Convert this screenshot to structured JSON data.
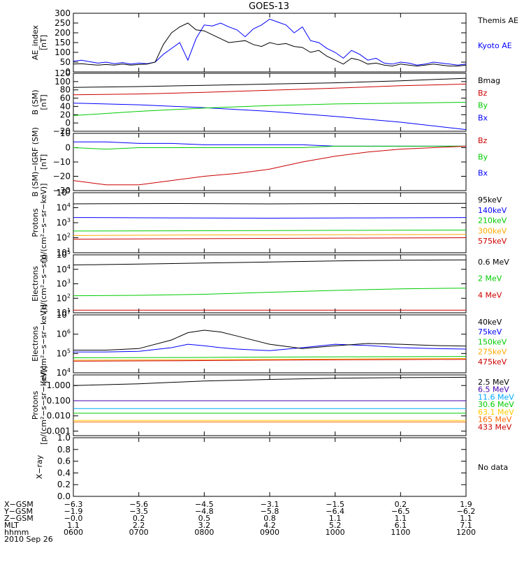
{
  "title": "GOES-13",
  "chart_data": [
    {
      "type": "line",
      "ylabel": "AE_index\n[nT]",
      "ylim": [
        0,
        300
      ],
      "yticks": [
        "0",
        "50",
        "100",
        "150",
        "200",
        "250",
        "300"
      ],
      "ytick_values": [
        0,
        50,
        100,
        150,
        200,
        250,
        300
      ],
      "series": [
        {
          "name": "Kyoto AE",
          "color": "#0000ff",
          "x": [
            0,
            0.5,
            1,
            1.5,
            2,
            2.5,
            3,
            3.5,
            4,
            4.5,
            5,
            5.5,
            6,
            6.5,
            7,
            7.5,
            8,
            8.5,
            9,
            9.5,
            10,
            10.5,
            11,
            11.5,
            12,
            12.5,
            13,
            13.5,
            14,
            14.5,
            15,
            15.5,
            16,
            16.5,
            17,
            17.5,
            18,
            18.5,
            19,
            19.5,
            20,
            20.5,
            21,
            21.5,
            22,
            22.5,
            23,
            23.5,
            24
          ],
          "y": [
            55,
            60,
            52,
            45,
            50,
            42,
            48,
            40,
            45,
            42,
            50,
            90,
            120,
            150,
            60,
            170,
            240,
            235,
            250,
            230,
            215,
            180,
            220,
            240,
            270,
            255,
            240,
            200,
            230,
            160,
            150,
            120,
            100,
            70,
            110,
            90,
            60,
            70,
            45,
            40,
            50,
            45,
            35,
            40,
            50,
            45,
            40,
            35,
            40
          ]
        },
        {
          "name": "Themis AE",
          "color": "#000000",
          "x": [
            0,
            0.5,
            1,
            1.5,
            2,
            2.5,
            3,
            3.5,
            4,
            4.5,
            5,
            5.5,
            6,
            6.5,
            7,
            7.5,
            8,
            8.5,
            9,
            9.5,
            10,
            10.5,
            11,
            11.5,
            12,
            12.5,
            13,
            13.5,
            14,
            14.5,
            15,
            15.5,
            16,
            16.5,
            17,
            17.5,
            18,
            18.5,
            19,
            19.5,
            20,
            20.5,
            21,
            21.5,
            22,
            22.5,
            23,
            23.5,
            24
          ],
          "y": [
            40,
            42,
            38,
            35,
            38,
            35,
            40,
            35,
            38,
            40,
            50,
            140,
            200,
            230,
            250,
            215,
            210,
            190,
            170,
            150,
            155,
            160,
            140,
            130,
            150,
            140,
            145,
            130,
            125,
            100,
            110,
            80,
            60,
            40,
            70,
            60,
            40,
            45,
            35,
            30,
            40,
            35,
            30,
            35,
            40,
            35,
            30,
            30,
            35
          ]
        }
      ]
    },
    {
      "type": "line",
      "ylabel": "B (SM)\n[nT]",
      "ylim": [
        -20,
        120
      ],
      "yticks": [
        "−20",
        "0",
        "20",
        "40",
        "60",
        "80",
        "100",
        "120"
      ],
      "ytick_values": [
        -20,
        0,
        20,
        40,
        60,
        80,
        100,
        120
      ],
      "series": [
        {
          "name": "Bx",
          "color": "#0000ff",
          "x": [
            0,
            4,
            8,
            12,
            16,
            20,
            24
          ],
          "y": [
            48,
            44,
            37,
            28,
            16,
            2,
            -16
          ]
        },
        {
          "name": "By",
          "color": "#00cc00",
          "x": [
            0,
            4,
            8,
            12,
            16,
            20,
            24
          ],
          "y": [
            18,
            28,
            36,
            42,
            46,
            48,
            50
          ]
        },
        {
          "name": "Bz",
          "color": "#cc0000",
          "x": [
            0,
            4,
            8,
            12,
            16,
            20,
            24
          ],
          "y": [
            68,
            70,
            74,
            79,
            84,
            90,
            94
          ]
        },
        {
          "name": "Bmag",
          "color": "#000000",
          "x": [
            0,
            4,
            8,
            12,
            16,
            20,
            24
          ],
          "y": [
            86,
            88,
            91,
            94,
            97,
            102,
            108
          ]
        }
      ]
    },
    {
      "type": "line",
      "ylabel": "B (SM)−IGRF (SM)\n[nT]",
      "ylim": [
        -30,
        10
      ],
      "yticks": [
        "−30",
        "−20",
        "−10",
        "0",
        "10"
      ],
      "ytick_values": [
        -30,
        -20,
        -10,
        0,
        10
      ],
      "series": [
        {
          "name": "Bx",
          "color": "#0000ff",
          "x": [
            0,
            2,
            4,
            6,
            8,
            10,
            12,
            14,
            16,
            18,
            20,
            22,
            24
          ],
          "y": [
            4,
            4,
            3,
            3,
            2,
            2,
            2,
            2,
            1,
            1,
            1,
            1,
            1
          ]
        },
        {
          "name": "By",
          "color": "#00cc00",
          "x": [
            0,
            2,
            4,
            6,
            8,
            10,
            12,
            14,
            16,
            18,
            20,
            22,
            24
          ],
          "y": [
            0,
            -1,
            0,
            0,
            0,
            0,
            0,
            0,
            1,
            1,
            1,
            1,
            1
          ]
        },
        {
          "name": "Bz",
          "color": "#cc0000",
          "x": [
            0,
            2,
            4,
            6,
            8,
            10,
            12,
            14,
            16,
            18,
            20,
            22,
            24
          ],
          "y": [
            -23,
            -26,
            -26,
            -23,
            -20,
            -18,
            -15,
            -10,
            -6,
            -3,
            -1,
            0,
            1
          ]
        }
      ]
    },
    {
      "type": "line",
      "scale": "log",
      "ylabel": "Protons\n[p/(cm²−s−sr−keV)]",
      "ylim": [
        10,
        100000
      ],
      "ytick_exps": [
        1,
        2,
        3,
        4,
        5
      ],
      "series": [
        {
          "name": "575keV",
          "color": "#cc0000",
          "x": [
            0,
            6,
            12,
            18,
            24
          ],
          "y": [
            80,
            85,
            90,
            95,
            100
          ]
        },
        {
          "name": "300keV",
          "color": "#ffaa00",
          "x": [
            0,
            6,
            12,
            18,
            24
          ],
          "y": [
            140,
            150,
            155,
            160,
            165
          ]
        },
        {
          "name": "210keV",
          "color": "#00cc00",
          "x": [
            0,
            6,
            12,
            18,
            24
          ],
          "y": [
            280,
            290,
            300,
            310,
            320
          ]
        },
        {
          "name": "140keV",
          "color": "#0000ff",
          "x": [
            0,
            6,
            12,
            18,
            24
          ],
          "y": [
            2200,
            2100,
            2000,
            2100,
            2200
          ]
        },
        {
          "name": "95keV",
          "color": "#000000",
          "x": [
            0,
            6,
            12,
            18,
            24
          ],
          "y": [
            18000,
            19000,
            18000,
            19000,
            19500
          ]
        }
      ]
    },
    {
      "type": "line",
      "scale": "log",
      "ylabel": "Electrons\n[e/(cm²−s−sr)]",
      "ylim": [
        10,
        100000
      ],
      "ytick_exps": [
        1,
        2,
        3,
        4,
        5
      ],
      "series": [
        {
          "name": "4 MeV",
          "color": "#cc0000",
          "x": [
            0,
            6,
            12,
            18,
            24
          ],
          "y": [
            15,
            15,
            15,
            15,
            15
          ]
        },
        {
          "name": "2 MeV",
          "color": "#00cc00",
          "x": [
            0,
            4,
            8,
            12,
            16,
            20,
            24
          ],
          "y": [
            150,
            160,
            190,
            260,
            350,
            450,
            500
          ]
        },
        {
          "name": "0.6 MeV",
          "color": "#000000",
          "x": [
            0,
            4,
            8,
            12,
            16,
            20,
            24
          ],
          "y": [
            20000,
            23000,
            27000,
            32000,
            38000,
            42000,
            45000
          ]
        }
      ]
    },
    {
      "type": "line",
      "scale": "log",
      "ylabel": "Electrons\n[e/(cm²−s−sr−keV)]",
      "ylim": [
        10000,
        10000000
      ],
      "ytick_exps": [
        4,
        5,
        6,
        7
      ],
      "series": [
        {
          "name": "475keV",
          "color": "#cc0000",
          "x": [
            0,
            6,
            12,
            18,
            24
          ],
          "y": [
            40000,
            42000,
            45000,
            48000,
            50000
          ]
        },
        {
          "name": "275keV",
          "color": "#ffaa00",
          "x": [
            0,
            6,
            12,
            18,
            24
          ],
          "y": [
            45000,
            47000,
            50000,
            53000,
            55000
          ]
        },
        {
          "name": "150keV",
          "color": "#00cc00",
          "x": [
            0,
            6,
            12,
            18,
            24
          ],
          "y": [
            60000,
            62000,
            65000,
            68000,
            70000
          ]
        },
        {
          "name": "75keV",
          "color": "#0000ff",
          "x": [
            0,
            2,
            4,
            6,
            7,
            8,
            9,
            10,
            12,
            14,
            16,
            18,
            20,
            22,
            24
          ],
          "y": [
            120000,
            120000,
            130000,
            200000,
            300000,
            250000,
            200000,
            170000,
            140000,
            200000,
            300000,
            260000,
            200000,
            180000,
            170000
          ]
        },
        {
          "name": "40keV",
          "color": "#000000",
          "x": [
            0,
            2,
            4,
            6,
            7,
            8,
            9,
            10,
            12,
            14,
            16,
            18,
            20,
            22,
            24
          ],
          "y": [
            150000,
            150000,
            180000,
            500000,
            1200000,
            1600000,
            1300000,
            800000,
            300000,
            180000,
            250000,
            330000,
            300000,
            260000,
            240000
          ]
        }
      ]
    },
    {
      "type": "line",
      "scale": "log",
      "ylabel": "Protons\n[p/(cm²−s−sr−keV)]",
      "ylim": [
        0.0005,
        5
      ],
      "yticks": [
        "0.001",
        "0.010",
        "0.100",
        "1.000"
      ],
      "ytick_values": [
        0.001,
        0.01,
        0.1,
        1
      ],
      "series": [
        {
          "name": "433 MeV",
          "color": "#cc0000",
          "x": [
            0,
            12,
            24
          ],
          "y": [
            0.1,
            0.1,
            0.1
          ]
        },
        {
          "name": "165 MeV",
          "color": "#ff6600",
          "x": [
            0,
            12,
            24
          ],
          "y": [
            0.004,
            0.004,
            0.004
          ]
        },
        {
          "name": "63.1 MeV",
          "color": "#ffcc00",
          "x": [
            0,
            12,
            24
          ],
          "y": [
            0.005,
            0.005,
            0.005
          ]
        },
        {
          "name": "30.6 MeV",
          "color": "#00cc00",
          "x": [
            0,
            12,
            24
          ],
          "y": [
            0.015,
            0.015,
            0.015
          ]
        },
        {
          "name": "11.6 MeV",
          "color": "#00aaff",
          "x": [
            0,
            12,
            24
          ],
          "y": [
            0.03,
            0.03,
            0.03
          ]
        },
        {
          "name": "6.5 MeV",
          "color": "#4400aa",
          "x": [
            0,
            12,
            24
          ],
          "y": [
            0.1,
            0.1,
            0.1
          ]
        },
        {
          "name": "2.5 MeV",
          "color": "#000000",
          "x": [
            0,
            4,
            8,
            12,
            16,
            20,
            24
          ],
          "y": [
            1.0,
            1.3,
            2.0,
            2.5,
            3.0,
            3.3,
            3.5
          ]
        }
      ]
    },
    {
      "type": "line",
      "ylabel": "X−ray",
      "ylim": [
        0,
        1
      ],
      "yticks": [
        "0.0",
        "0.2",
        "0.4",
        "0.6",
        "0.8",
        "1.0"
      ],
      "ytick_values": [
        0,
        0.2,
        0.4,
        0.6,
        0.8,
        1.0
      ],
      "note": "No data",
      "series": []
    }
  ],
  "ephemeris": {
    "rows": [
      {
        "label": "X−GSM",
        "values": [
          "−6.3",
          "−5.6",
          "−4.5",
          "−3.1",
          "−1.5",
          "0.2",
          "1.9"
        ]
      },
      {
        "label": "Y−GSM",
        "values": [
          "−1.9",
          "−3.5",
          "−4.8",
          "−5.8",
          "−6.4",
          "−6.5",
          "−6.2"
        ]
      },
      {
        "label": "Z−GSM",
        "values": [
          "−0.0",
          "0.2",
          "0.5",
          "0.8",
          "1.1",
          "1.1",
          "1.1"
        ]
      },
      {
        "label": "MLT",
        "values": [
          "1.1",
          "2.2",
          "3.2",
          "4.2",
          "5.2",
          "6.1",
          "7.1"
        ]
      },
      {
        "label": "hhmm",
        "values": [
          "0600",
          "0700",
          "0800",
          "0900",
          "1000",
          "1100",
          "1200"
        ]
      }
    ],
    "date": "2010 Sep 26"
  }
}
